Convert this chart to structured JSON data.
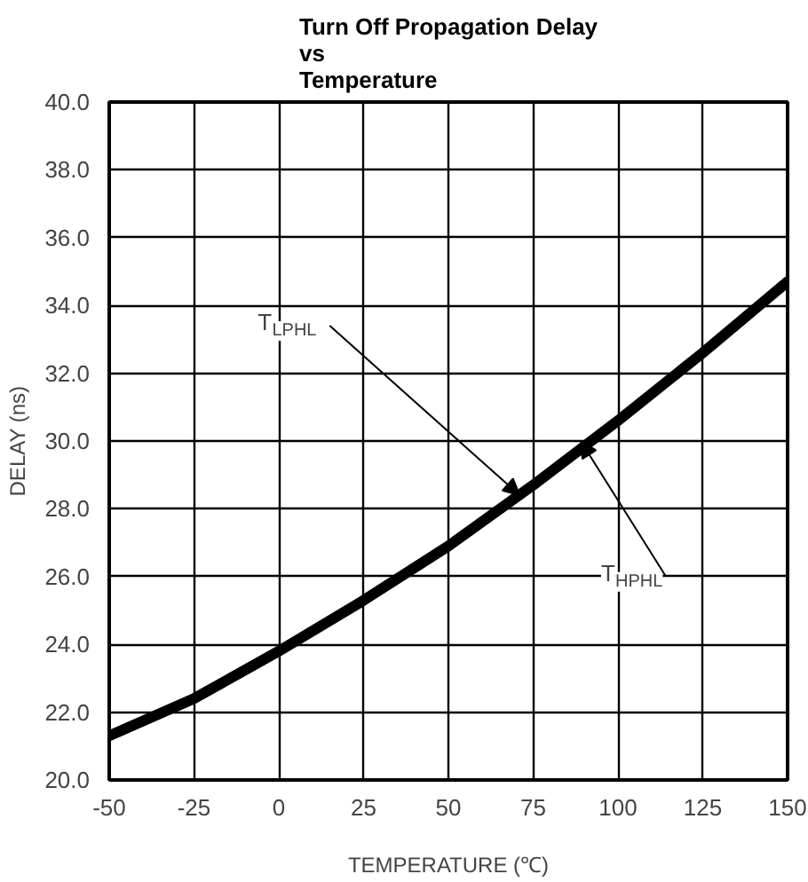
{
  "chart_data": {
    "type": "line",
    "title": "Turn Off Propagation Delay\nvs\nTemperature",
    "xlabel": "TEMPERATURE (℃)",
    "ylabel": "DELAY (ns)",
    "x": [
      -50,
      -25,
      0,
      25,
      50,
      75,
      100,
      125,
      150
    ],
    "series": [
      {
        "color": "#000000",
        "values": [
          21.3,
          22.4,
          23.8,
          25.3,
          26.9,
          28.7,
          30.6,
          32.6,
          34.7
        ]
      }
    ],
    "xlim": [
      -50,
      150
    ],
    "xticks": [
      -50,
      -25,
      0,
      25,
      50,
      75,
      100,
      125,
      150
    ],
    "ylim": [
      20,
      40
    ],
    "yticks": [
      {
        "value": 20,
        "label": "20.0"
      },
      {
        "value": 22,
        "label": "22.0"
      },
      {
        "value": 24,
        "label": "24.0"
      },
      {
        "value": 26,
        "label": "26.0"
      },
      {
        "value": 28,
        "label": "28.0"
      },
      {
        "value": 30,
        "label": "30.0"
      },
      {
        "value": 32,
        "label": "32.0"
      },
      {
        "value": 34,
        "label": "34.0"
      },
      {
        "value": 36,
        "label": "36.0"
      },
      {
        "value": 38,
        "label": "38.0"
      },
      {
        "value": 40,
        "label": "40.0"
      }
    ],
    "grid": true,
    "line_style": "solid",
    "marker": "none",
    "annotations": [
      {
        "text": "T$_{LPHL}$",
        "x": 71,
        "y": 28.4
      },
      {
        "text": "T$_{HPHL}$",
        "x": 89,
        "y": 30.0
      }
    ]
  }
}
